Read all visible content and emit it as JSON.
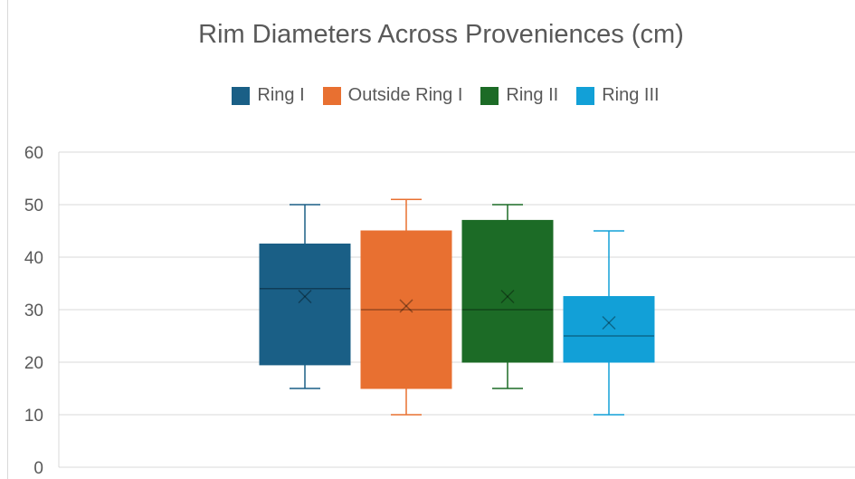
{
  "chart_data": {
    "type": "box",
    "title": "Rim Diameters Across Proveniences (cm)",
    "ylim": [
      0,
      60
    ],
    "yticks": [
      0,
      10,
      20,
      30,
      40,
      50,
      60
    ],
    "grid": true,
    "legend_position": "top",
    "series": [
      {
        "name": "Ring I",
        "color": "#1a5f86",
        "min": 15,
        "q1": 19.5,
        "median": 34,
        "q3": 42.5,
        "max": 50,
        "mean": 32.5
      },
      {
        "name": "Outside Ring I",
        "color": "#e87031",
        "min": 10,
        "q1": 15,
        "median": 30,
        "q3": 45,
        "max": 51,
        "mean": 30.7
      },
      {
        "name": "Ring II",
        "color": "#1c6b26",
        "min": 15,
        "q1": 20,
        "median": 30,
        "q3": 47,
        "max": 50,
        "mean": 32.5
      },
      {
        "name": "Ring III",
        "color": "#12a0d7",
        "min": 10,
        "q1": 20,
        "median": 25,
        "q3": 32.5,
        "max": 45,
        "mean": 27.5
      }
    ]
  }
}
